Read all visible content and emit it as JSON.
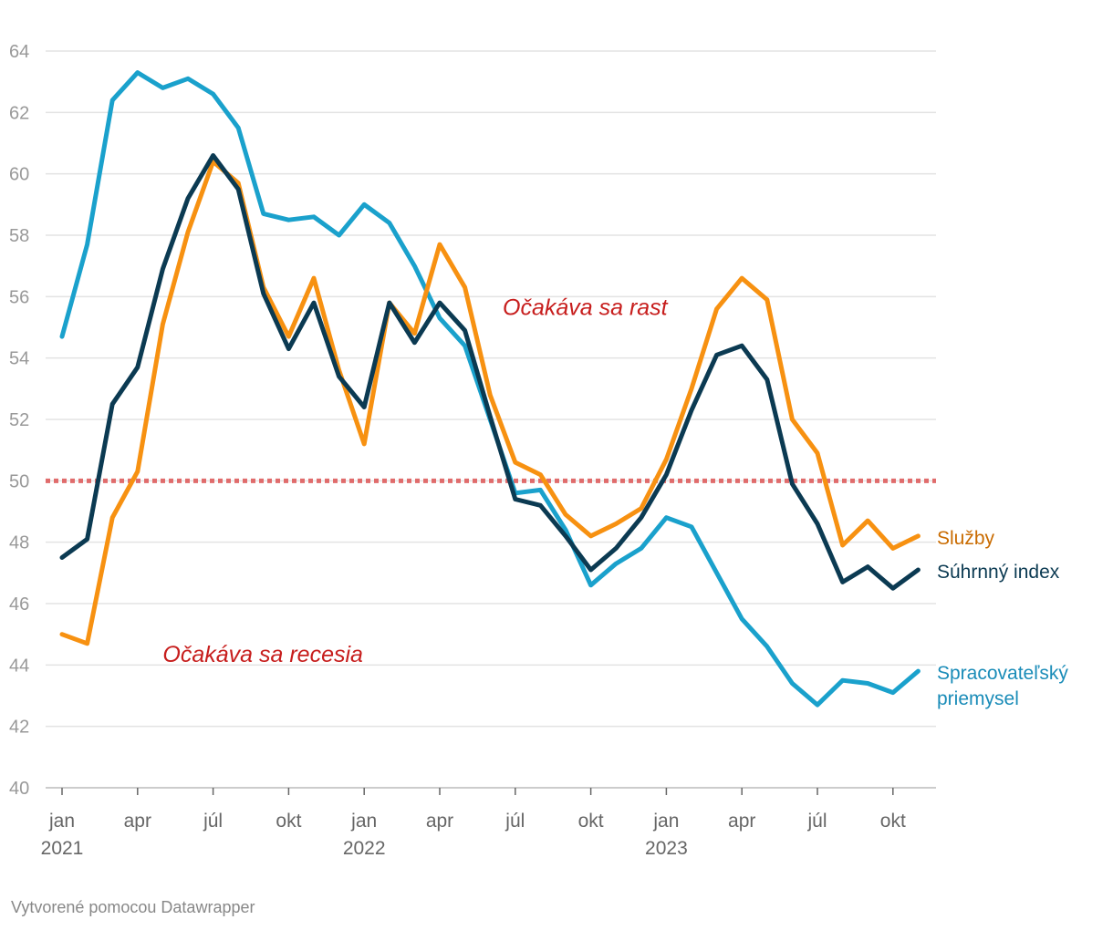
{
  "chart_data": {
    "type": "line",
    "title": "",
    "xlabel": "",
    "ylabel": "",
    "ylim": [
      40,
      64
    ],
    "yticks": [
      40,
      42,
      44,
      46,
      48,
      50,
      52,
      54,
      56,
      58,
      60,
      62,
      64
    ],
    "x_start": "2021-01",
    "x_tick_labels": [
      {
        "month_index": 0,
        "label": "jan",
        "year": "2021"
      },
      {
        "month_index": 3,
        "label": "apr",
        "year": ""
      },
      {
        "month_index": 6,
        "label": "júl",
        "year": ""
      },
      {
        "month_index": 9,
        "label": "okt",
        "year": ""
      },
      {
        "month_index": 12,
        "label": "jan",
        "year": "2022"
      },
      {
        "month_index": 15,
        "label": "apr",
        "year": ""
      },
      {
        "month_index": 18,
        "label": "júl",
        "year": ""
      },
      {
        "month_index": 21,
        "label": "okt",
        "year": ""
      },
      {
        "month_index": 24,
        "label": "jan",
        "year": "2023"
      },
      {
        "month_index": 27,
        "label": "apr",
        "year": ""
      },
      {
        "month_index": 30,
        "label": "júl",
        "year": ""
      },
      {
        "month_index": 33,
        "label": "okt",
        "year": ""
      }
    ],
    "reference_line": {
      "value": 50,
      "color": "#e06c6c"
    },
    "annotations": [
      {
        "text": "Očakáva sa rast",
        "x_month": 17.5,
        "y": 55.4
      },
      {
        "text": "Očakáva sa recesia",
        "x_month": 4,
        "y": 44.1
      }
    ],
    "series": [
      {
        "name": "Spracovateľský priemysel",
        "label_lines": [
          "Spracovateľský",
          "priemysel"
        ],
        "color": "#1aa1cc",
        "label_color": "#1a8cb8",
        "values": [
          54.7,
          57.7,
          62.4,
          63.3,
          62.8,
          63.1,
          62.6,
          61.5,
          58.7,
          58.5,
          58.6,
          58.0,
          59.0,
          58.4,
          57.0,
          55.3,
          54.4,
          52.0,
          49.6,
          49.7,
          48.4,
          46.6,
          47.3,
          47.8,
          48.8,
          48.5,
          47.0,
          45.5,
          44.6,
          43.4,
          42.7,
          43.5,
          43.4,
          43.1,
          43.8
        ]
      },
      {
        "name": "Služby",
        "label_lines": [
          "Služby"
        ],
        "color": "#f79111",
        "label_color": "#c96b00",
        "values": [
          45.0,
          44.7,
          48.8,
          50.3,
          55.1,
          58.1,
          60.4,
          59.7,
          56.3,
          54.7,
          56.6,
          53.6,
          51.2,
          55.8,
          54.8,
          57.7,
          56.3,
          52.8,
          50.6,
          50.2,
          48.9,
          48.2,
          48.6,
          49.1,
          50.7,
          53.0,
          55.6,
          56.6,
          55.9,
          52.0,
          50.9,
          47.9,
          48.7,
          47.8,
          48.2
        ]
      },
      {
        "name": "Súhrnný index",
        "label_lines": [
          "Súhrnný index"
        ],
        "color": "#0b3a52",
        "label_color": "#0b3a52",
        "values": [
          47.5,
          48.1,
          52.5,
          53.7,
          56.9,
          59.2,
          60.6,
          59.5,
          56.1,
          54.3,
          55.8,
          53.4,
          52.4,
          55.8,
          54.5,
          55.8,
          54.9,
          52.1,
          49.4,
          49.2,
          48.2,
          47.1,
          47.8,
          48.8,
          50.2,
          52.3,
          54.1,
          54.4,
          53.3,
          49.9,
          48.6,
          46.7,
          47.2,
          46.5,
          47.1
        ]
      }
    ]
  },
  "footer": {
    "credit": "Vytvorené pomocou Datawrapper"
  }
}
